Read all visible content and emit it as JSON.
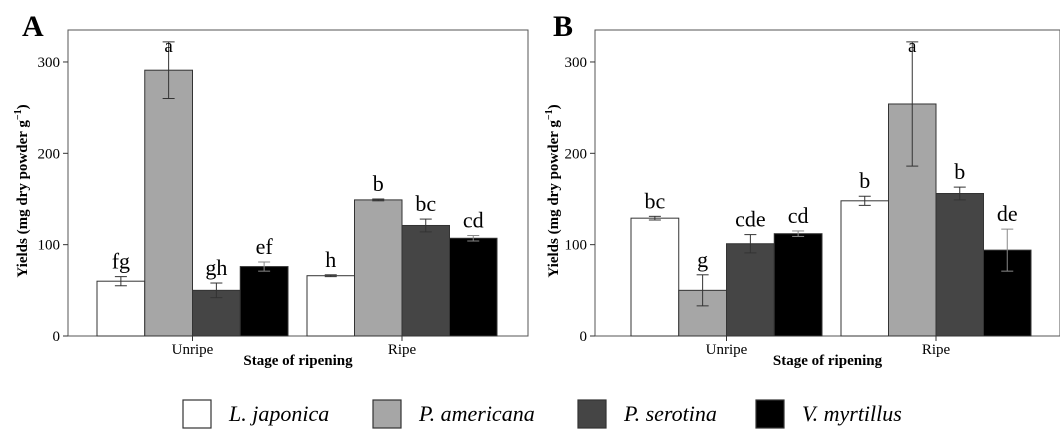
{
  "legend": {
    "items": [
      {
        "label": "L. japonica",
        "color": "#ffffff"
      },
      {
        "label": "P. americana",
        "color": "#a6a6a6"
      },
      {
        "label": "P. serotina",
        "color": "#454545"
      },
      {
        "label": "V. myrtillus",
        "color": "#000000"
      }
    ]
  },
  "chart_data": [
    {
      "type": "bar",
      "panel_label": "A",
      "categories": [
        "Unripe",
        "Ripe"
      ],
      "xlabel": "Stage of ripening",
      "ylabel": "Yields (mg dry powder g",
      "ylabel_superscript": "−1",
      "ylabel_close": ")",
      "ylim": [
        0,
        335
      ],
      "yticks": [
        0,
        100,
        200,
        300
      ],
      "grid": false,
      "legend_position": "bottom",
      "series": [
        {
          "name": "L. japonica",
          "values": [
            60,
            66
          ],
          "errors": [
            5,
            1
          ],
          "letters": [
            "fg",
            "h"
          ]
        },
        {
          "name": "P. americana",
          "values": [
            291,
            149
          ],
          "errors": [
            31,
            1
          ],
          "letters": [
            "a",
            "b"
          ]
        },
        {
          "name": "P. serotina",
          "values": [
            50,
            121
          ],
          "errors": [
            8,
            7
          ],
          "letters": [
            "gh",
            "bc"
          ]
        },
        {
          "name": "V. myrtillus",
          "values": [
            76,
            107
          ],
          "errors": [
            5,
            3
          ],
          "letters": [
            "ef",
            "cd"
          ]
        }
      ]
    },
    {
      "type": "bar",
      "panel_label": "B",
      "categories": [
        "Unripe",
        "Ripe"
      ],
      "xlabel": "Stage of ripening",
      "ylabel": "Yields (mg dry powder g",
      "ylabel_superscript": "−1",
      "ylabel_close": ")",
      "ylim": [
        0,
        335
      ],
      "yticks": [
        0,
        100,
        200,
        300
      ],
      "grid": false,
      "legend_position": "bottom",
      "series": [
        {
          "name": "L. japonica",
          "values": [
            129,
            148
          ],
          "errors": [
            2,
            5
          ],
          "letters": [
            "bc",
            "b"
          ]
        },
        {
          "name": "P. americana",
          "values": [
            50,
            254
          ],
          "errors": [
            17,
            68
          ],
          "letters": [
            "g",
            "a"
          ]
        },
        {
          "name": "P. serotina",
          "values": [
            101,
            156
          ],
          "errors": [
            10,
            7
          ],
          "letters": [
            "cde",
            "b"
          ]
        },
        {
          "name": "V. myrtillus",
          "values": [
            112,
            94
          ],
          "errors": [
            3,
            23
          ],
          "letters": [
            "cd",
            "de"
          ]
        }
      ]
    }
  ]
}
